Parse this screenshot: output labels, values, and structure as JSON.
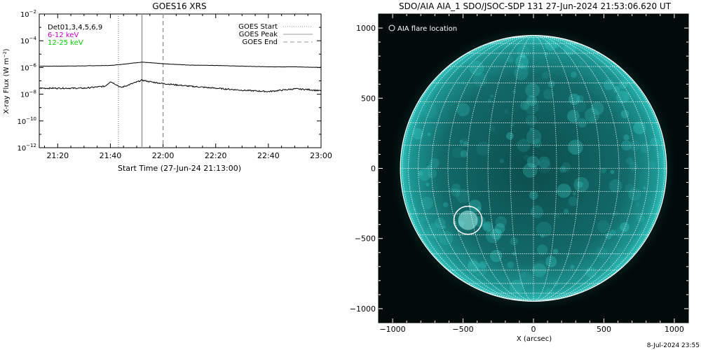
{
  "chart_data": [
    {
      "type": "line",
      "title": "GOES16 XRS",
      "xlabel": "Start Time (27-Jun-24 21:13:00)",
      "ylabel": "X-ray Flux (W m⁻²)",
      "yscale": "log",
      "ylim_exp": [
        -12,
        -2
      ],
      "x_ticks": [
        "21:20",
        "21:40",
        "22:00",
        "22:20",
        "22:40",
        "23:00"
      ],
      "x_tick_minutes": [
        20,
        40,
        60,
        80,
        100,
        120
      ],
      "xlim_minutes": [
        13,
        120
      ],
      "y_tick_exponents": [
        -12,
        -10,
        -8,
        -6,
        -4,
        -2
      ],
      "y_tick_base": "10",
      "legend_left": [
        {
          "label": "Det01,3,4,5,6,9",
          "color": "#000000"
        },
        {
          "label": "6-12 keV",
          "color": "#cc00cc"
        },
        {
          "label": "12-25 keV",
          "color": "#00cc00"
        }
      ],
      "legend_right": [
        {
          "label": "GOES Start",
          "dash": "1,2",
          "color": "#999999"
        },
        {
          "label": "GOES Peak",
          "dash": "",
          "color": "#999999"
        },
        {
          "label": "GOES End",
          "dash": "6,4",
          "color": "#999999"
        }
      ],
      "events": {
        "start_min": 43,
        "peak_min": 52,
        "end_min": 60
      },
      "series": [
        {
          "name": "long",
          "x": [
            13,
            20,
            30,
            40,
            45,
            52,
            60,
            70,
            80,
            90,
            100,
            110,
            120
          ],
          "logy": [
            -5.9,
            -5.9,
            -5.88,
            -5.85,
            -5.75,
            -5.6,
            -5.72,
            -5.82,
            -5.85,
            -5.9,
            -5.95,
            -5.95,
            -6.0
          ]
        },
        {
          "name": "short",
          "x": [
            13,
            20,
            30,
            38,
            40,
            42,
            44,
            47,
            52,
            56,
            60,
            70,
            80,
            90,
            100,
            110,
            115,
            120
          ],
          "logy": [
            -7.55,
            -7.55,
            -7.55,
            -7.4,
            -7.05,
            -7.25,
            -7.5,
            -7.3,
            -6.95,
            -7.1,
            -7.2,
            -7.4,
            -7.55,
            -7.7,
            -7.8,
            -7.6,
            -7.65,
            -7.75
          ]
        }
      ]
    },
    {
      "type": "image",
      "title": "SDO/AIA AIA_1 SDO/JSOC-SDP 131 27-Jun-2024 21:53:06.620 UT",
      "xlabel": "X (arcsec)",
      "ylabel": "",
      "xlim": [
        -1100,
        1100
      ],
      "ylim": [
        -1100,
        1100
      ],
      "x_ticks": [
        -1000,
        -500,
        0,
        500,
        1000
      ],
      "y_ticks": [
        1000,
        500,
        0,
        -500,
        -1000
      ],
      "solar_radius_arcsec": 945,
      "flare_location": {
        "x": -465,
        "y": -370,
        "radius": 100
      },
      "annotation": "AIA flare location",
      "disk_color": "#1fa2a0",
      "grid_color": "#ffffff"
    }
  ],
  "footer": {
    "timestamp": "8-Jul-2024 23:55"
  }
}
